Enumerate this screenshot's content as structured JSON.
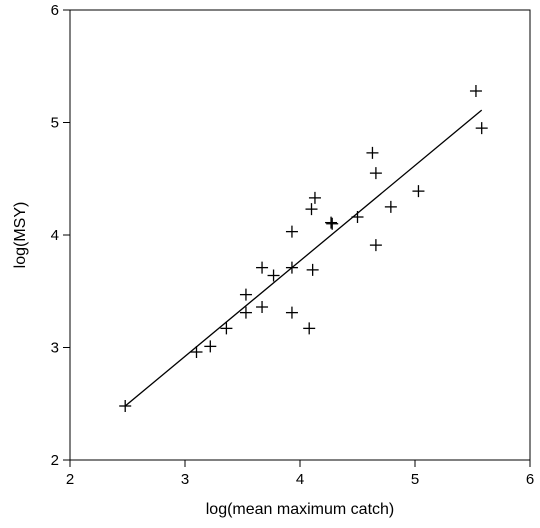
{
  "chart_data": {
    "type": "scatter",
    "title": "",
    "xlabel": "log(mean maximum catch)",
    "ylabel": "log(MSY)",
    "xlim": [
      2,
      6
    ],
    "ylim": [
      2,
      6
    ],
    "xticks": [
      2,
      3,
      4,
      5,
      6
    ],
    "yticks": [
      2,
      3,
      4,
      5,
      6
    ],
    "grid": false,
    "marker": "+",
    "colors": {
      "marks": "#000000",
      "axes": "#000000",
      "background": "#ffffff"
    },
    "series": [
      {
        "points": [
          [
            2.48,
            2.48
          ],
          [
            3.1,
            2.96
          ],
          [
            3.22,
            3.01
          ],
          [
            3.36,
            3.17
          ],
          [
            3.53,
            3.31
          ],
          [
            3.53,
            3.47
          ],
          [
            3.67,
            3.36
          ],
          [
            3.67,
            3.71
          ],
          [
            3.77,
            3.64
          ],
          [
            3.93,
            3.71
          ],
          [
            3.93,
            3.31
          ],
          [
            3.93,
            4.03
          ],
          [
            4.08,
            3.17
          ],
          [
            4.1,
            4.23
          ],
          [
            4.11,
            3.69
          ],
          [
            4.13,
            4.33
          ],
          [
            4.27,
            4.11
          ],
          [
            4.28,
            4.1
          ],
          [
            4.5,
            4.16
          ],
          [
            4.63,
            4.73
          ],
          [
            4.66,
            4.55
          ],
          [
            4.66,
            3.91
          ],
          [
            4.79,
            4.25
          ],
          [
            5.03,
            4.39
          ],
          [
            5.53,
            5.28
          ],
          [
            5.58,
            4.95
          ]
        ]
      }
    ],
    "fit_line": {
      "x": [
        2.48,
        5.58
      ],
      "y": [
        2.48,
        5.11
      ]
    }
  }
}
